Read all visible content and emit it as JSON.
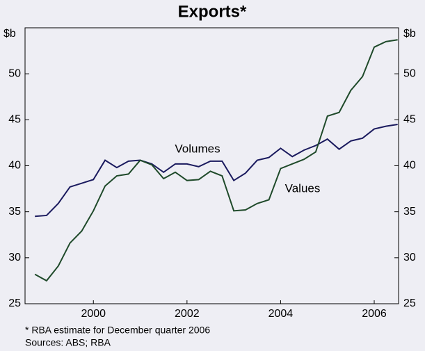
{
  "chart_data": {
    "type": "line",
    "title": "Exports*",
    "y_unit_left": "$b",
    "y_unit_right": "$b",
    "x": [
      1998.75,
      1999,
      1999.25,
      1999.5,
      1999.75,
      2000,
      2000.25,
      2000.5,
      2000.75,
      2001,
      2001.25,
      2001.5,
      2001.75,
      2002,
      2002.25,
      2002.5,
      2002.75,
      2003,
      2003.25,
      2003.5,
      2003.75,
      2004,
      2004.25,
      2004.5,
      2004.75,
      2005,
      2005.25,
      2005.5,
      2005.75,
      2006,
      2006.25,
      2006.5
    ],
    "series": [
      {
        "name": "Volumes",
        "color": "#1a1a5e",
        "values": [
          34.5,
          34.6,
          35.9,
          37.7,
          38.1,
          38.5,
          40.6,
          39.8,
          40.5,
          40.6,
          40.2,
          39.3,
          40.2,
          40.2,
          39.9,
          40.5,
          40.5,
          38.4,
          39.2,
          40.6,
          40.9,
          41.9,
          41.0,
          41.7,
          42.2,
          42.9,
          41.8,
          42.7,
          43.0,
          44.0,
          44.3,
          44.5
        ]
      },
      {
        "name": "Values",
        "color": "#1f4a2a",
        "values": [
          28.2,
          27.5,
          29.1,
          31.6,
          32.9,
          35.1,
          37.8,
          38.9,
          39.1,
          40.6,
          40.1,
          38.6,
          39.3,
          38.4,
          38.5,
          39.4,
          38.9,
          35.1,
          35.2,
          35.9,
          36.3,
          39.7,
          40.2,
          40.7,
          41.5,
          45.4,
          45.8,
          48.2,
          49.7,
          52.9,
          53.5,
          53.7
        ]
      }
    ],
    "xlim": [
      1998.54,
      2006.52
    ],
    "xticks": [
      2000,
      2002,
      2004,
      2006
    ],
    "ylim": [
      25,
      55
    ],
    "yticks": [
      25,
      30,
      35,
      40,
      45,
      50
    ],
    "grid": false,
    "footnotes": [
      "*   RBA estimate for December quarter 2006",
      "Sources: ABS; RBA"
    ]
  }
}
